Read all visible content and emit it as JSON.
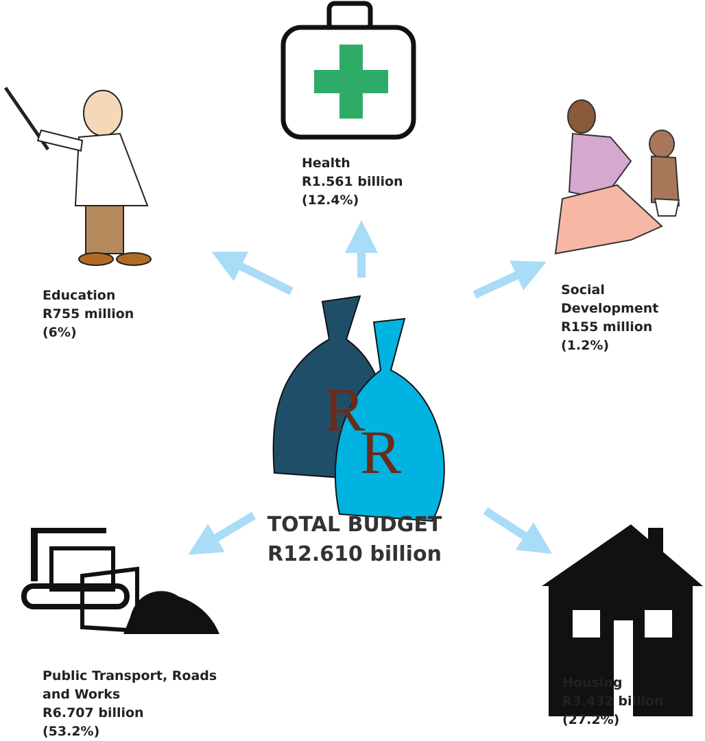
{
  "center": {
    "bags": [
      "R",
      "R"
    ],
    "title": "TOTAL BUDGET",
    "amount": "R12.610 billion"
  },
  "nodes": [
    {
      "name": "Health",
      "amount": "R1.561 billion",
      "share": "(12.4%)"
    },
    {
      "name": "Education",
      "amount": "R755 million",
      "share": "(6%)"
    },
    {
      "name": "Social Development",
      "amount": "R155 million",
      "share": "(1.2%)"
    },
    {
      "name": "Public Transport, Roads and Works",
      "amount": "R6.707 billion",
      "share": "(53.2%)"
    },
    {
      "name": "Housing",
      "amount": "R3.432 billion",
      "share": "(27.2%)"
    }
  ]
}
